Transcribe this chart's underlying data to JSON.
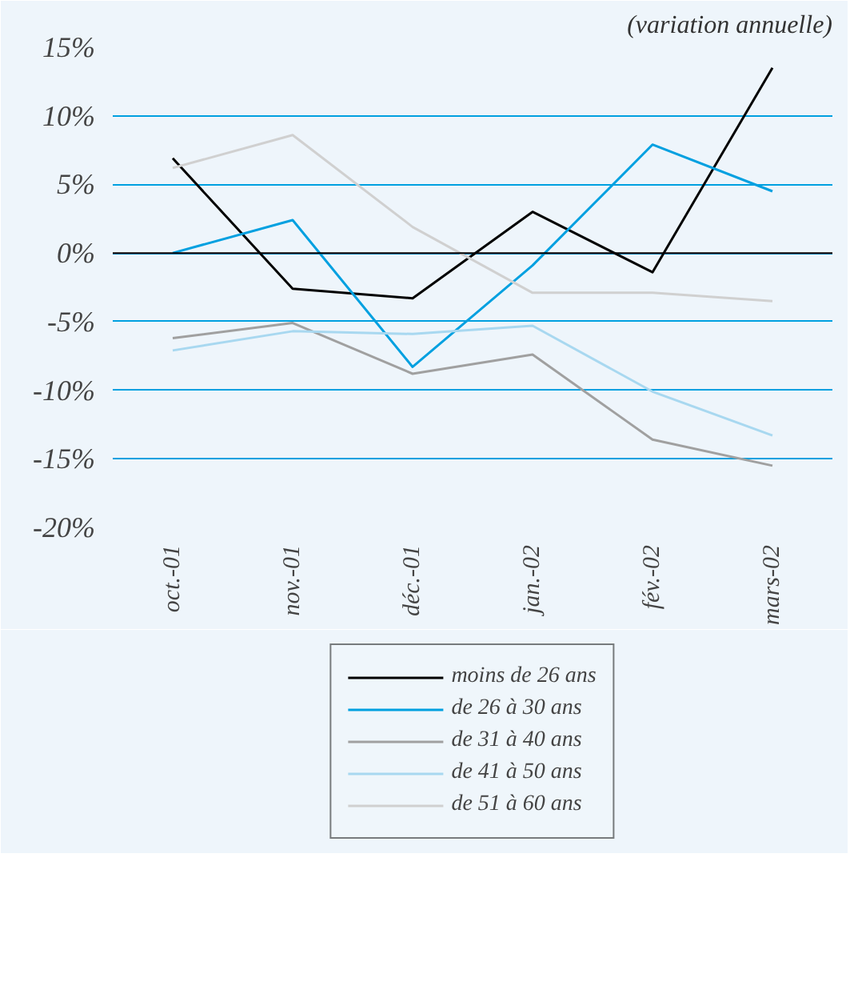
{
  "chart_data": {
    "type": "line",
    "annotations": [
      "(variation annuelle)"
    ],
    "categories": [
      "oct.-01",
      "nov.-01",
      "déc.-01",
      "jan.-02",
      "fév.-02",
      "mars-02"
    ],
    "series": [
      {
        "name": "moins de 26 ans",
        "color": "#000000",
        "values": [
          6.9,
          -2.6,
          -3.3,
          3.0,
          -1.4,
          13.5
        ]
      },
      {
        "name": "de 26 à 30 ans",
        "color": "#00a0e0",
        "values": [
          0.0,
          2.4,
          -8.3,
          -0.9,
          7.9,
          4.5
        ]
      },
      {
        "name": "de 31 à 40 ans",
        "color": "#a0a0a0",
        "values": [
          -6.2,
          -5.1,
          -8.8,
          -7.4,
          -13.6,
          -15.5
        ]
      },
      {
        "name": "de 41 à 50 ans",
        "color": "#a8d8f0",
        "values": [
          -7.1,
          -5.7,
          -5.9,
          -5.3,
          -10.1,
          -13.3
        ]
      },
      {
        "name": "de 51 à 60 ans",
        "color": "#d0d0d0",
        "values": [
          6.2,
          8.6,
          1.9,
          -2.9,
          -2.9,
          -3.5
        ]
      }
    ],
    "ylim": [
      -20,
      15
    ],
    "yticks": [
      {
        "value": -20,
        "label": "-20%"
      },
      {
        "value": -15,
        "label": "-15%"
      },
      {
        "value": -10,
        "label": "-10%"
      },
      {
        "value": -5,
        "label": "-5%"
      },
      {
        "value": 0,
        "label": "0%"
      },
      {
        "value": 5,
        "label": "5%"
      },
      {
        "value": 10,
        "label": "10%"
      },
      {
        "value": 15,
        "label": "15%"
      }
    ],
    "grid": "y",
    "legend": "bottom",
    "marker": "none",
    "line_style": "solid"
  }
}
